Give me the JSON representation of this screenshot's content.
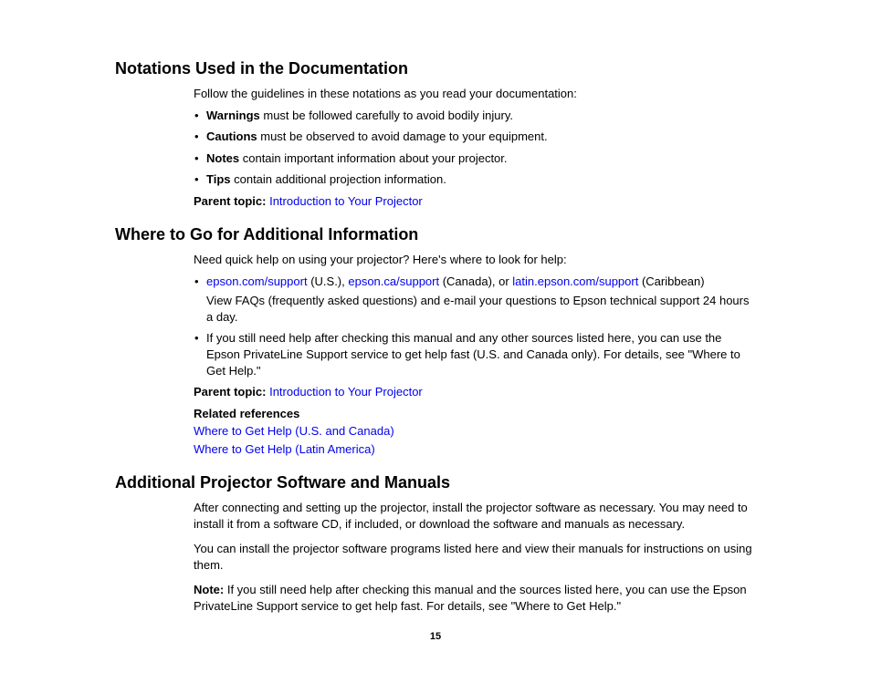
{
  "sections": [
    {
      "heading": "Notations Used in the Documentation",
      "intro": "Follow the guidelines in these notations as you read your documentation:",
      "bullets": [
        {
          "bold": "Warnings",
          "rest": " must be followed carefully to avoid bodily injury."
        },
        {
          "bold": "Cautions",
          "rest": " must be observed to avoid damage to your equipment."
        },
        {
          "bold": "Notes",
          "rest": " contain important information about your projector."
        },
        {
          "bold": "Tips",
          "rest": " contain additional projection information."
        }
      ],
      "parent_label": "Parent topic:",
      "parent_link": "Introduction to Your Projector"
    },
    {
      "heading": "Where to Go for Additional Information",
      "intro": "Need quick help on using your projector? Here's where to look for help:",
      "link_bullet": {
        "link1": "epson.com/support",
        "after1": " (U.S.), ",
        "link2": "epson.ca/support",
        "after2": " (Canada), or ",
        "link3": "latin.epson.com/support",
        "after3": " (Caribbean)",
        "sub": "View FAQs (frequently asked questions) and e-mail your questions to Epson technical support 24 hours a day."
      },
      "bullet_plain": "If you still need help after checking this manual and any other sources listed here, you can use the Epson PrivateLine Support service to get help fast (U.S. and Canada only). For details, see \"Where to Get Help.\"",
      "parent_label": "Parent topic:",
      "parent_link": "Introduction to Your Projector",
      "refs_head": "Related references",
      "ref1": "Where to Get Help (U.S. and Canada)",
      "ref2": "Where to Get Help (Latin America)"
    },
    {
      "heading": "Additional Projector Software and Manuals",
      "para1": "After connecting and setting up the projector, install the projector software as necessary. You may need to install it from a software CD, if included, or download the software and manuals as necessary.",
      "para2": "You can install the projector software programs listed here and view their manuals for instructions on using them.",
      "note_label": "Note:",
      "note_rest": " If you still need help after checking this manual and the sources listed here, you can use the Epson PrivateLine Support service to get help fast. For details, see \"Where to Get Help.\""
    }
  ],
  "page_number": "15"
}
